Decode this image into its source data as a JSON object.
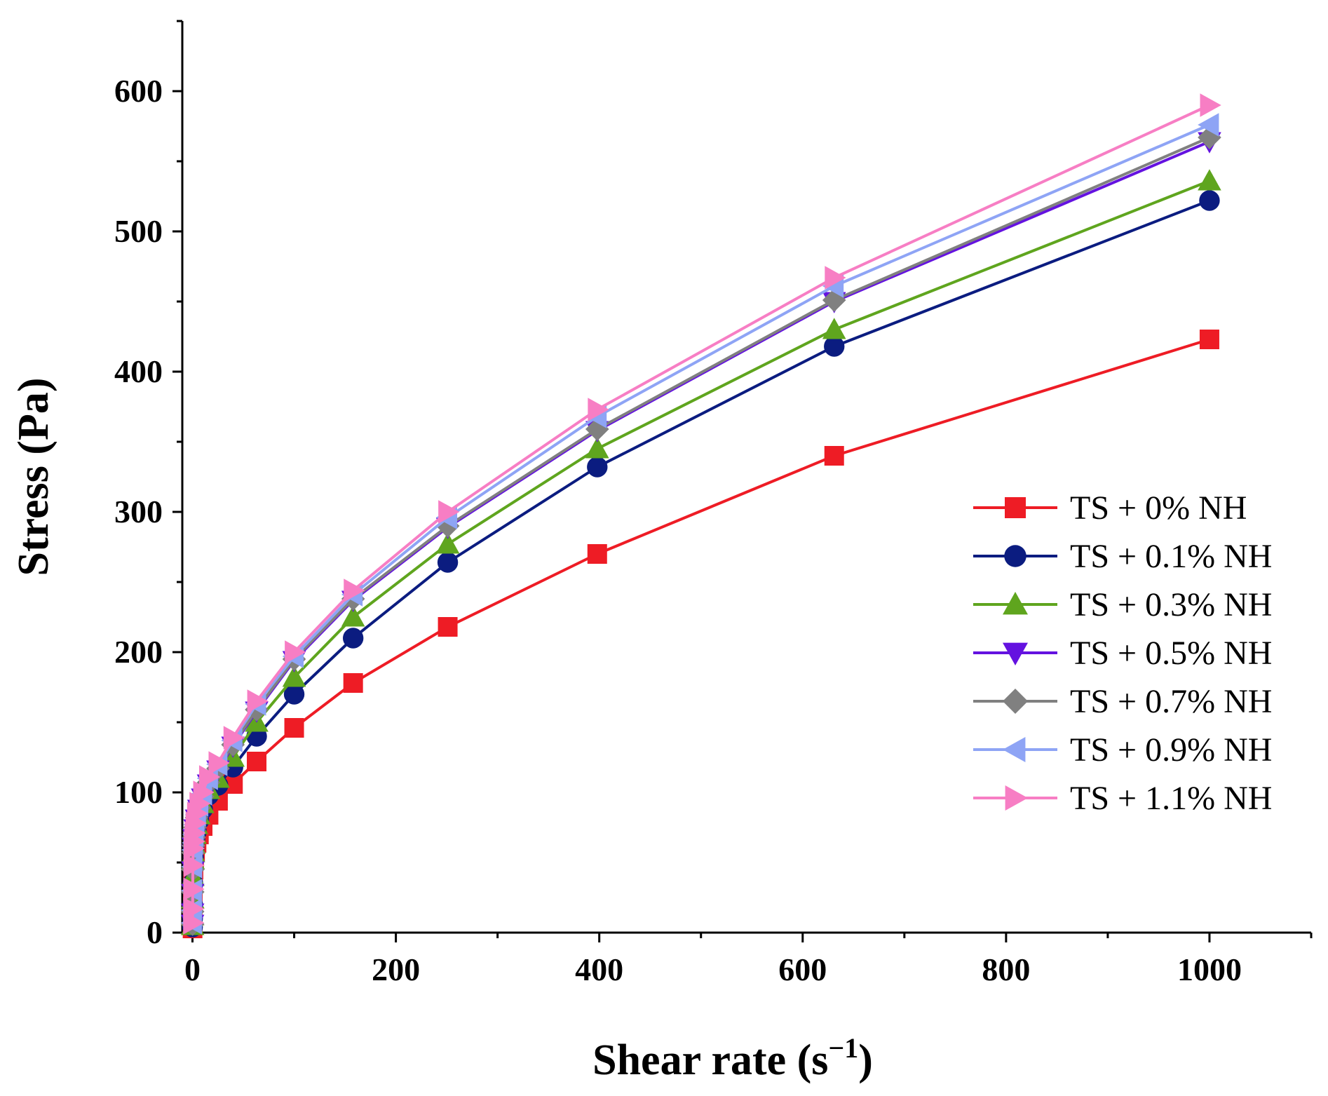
{
  "chart_data": {
    "type": "line",
    "title": "",
    "xlabel": "Shear rate (s",
    "xlabel_sup": "−1",
    "xlabel_tail": ")",
    "ylabel": "Stress (Pa)",
    "xlim": [
      -10,
      1100
    ],
    "ylim": [
      0,
      650
    ],
    "xticks": [
      0,
      200,
      400,
      600,
      800,
      1000
    ],
    "xtick_labels": [
      "0",
      "200",
      "400",
      "600",
      "800",
      "1000"
    ],
    "xminor": [
      100,
      300,
      500,
      700,
      900,
      1100
    ],
    "yticks": [
      0,
      100,
      200,
      300,
      400,
      500,
      600
    ],
    "ytick_labels": [
      "0",
      "100",
      "200",
      "300",
      "400",
      "500",
      "600"
    ],
    "yminor": [
      50,
      150,
      250,
      350,
      450,
      550,
      650
    ],
    "grid": false,
    "legend": "right",
    "x": [
      0.1,
      0.16,
      0.25,
      0.4,
      0.63,
      1,
      1.58,
      2.51,
      3.98,
      6.31,
      10,
      15.8,
      25.1,
      39.8,
      63.1,
      100,
      158,
      251,
      398,
      631,
      1000
    ],
    "series": [
      {
        "name": "TS + 0% NH",
        "color": "#ee1c25",
        "marker": "square",
        "values": [
          3,
          8,
          15,
          28,
          40,
          45,
          52,
          58,
          64,
          70,
          76,
          84,
          94,
          106,
          122,
          146,
          178,
          218,
          270,
          340,
          423
        ]
      },
      {
        "name": "TS + 0.1% NH",
        "color": "#0b1c80",
        "marker": "circle",
        "values": [
          4,
          10,
          20,
          35,
          48,
          54,
          60,
          66,
          72,
          80,
          88,
          98,
          105,
          118,
          140,
          170,
          210,
          264,
          332,
          418,
          522
        ]
      },
      {
        "name": "TS + 0.3% NH",
        "color": "#5fa51e",
        "marker": "triangle-up",
        "values": [
          5,
          12,
          24,
          40,
          52,
          57,
          63,
          70,
          77,
          84,
          92,
          102,
          110,
          125,
          150,
          182,
          225,
          277,
          345,
          430,
          536
        ]
      },
      {
        "name": "TS + 0.5% NH",
        "color": "#6412e0",
        "marker": "triangle-down",
        "values": [
          6,
          14,
          28,
          44,
          56,
          61,
          67,
          74,
          81,
          88,
          96,
          106,
          116,
          133,
          158,
          194,
          237,
          289,
          358,
          450,
          564
        ]
      },
      {
        "name": "TS + 0.7% NH",
        "color": "#808080",
        "marker": "diamond",
        "values": [
          6,
          15,
          29,
          45,
          57,
          62,
          68,
          75,
          82,
          89,
          97,
          107,
          117,
          134,
          159,
          195,
          238,
          290,
          359,
          451,
          567
        ]
      },
      {
        "name": "TS + 0.9% NH",
        "color": "#8ea4f5",
        "marker": "triangle-left",
        "values": [
          7,
          16,
          30,
          47,
          59,
          64,
          70,
          77,
          84,
          91,
          99,
          110,
          120,
          137,
          163,
          197,
          241,
          296,
          368,
          461,
          576
        ]
      },
      {
        "name": "TS + 1.1% NH",
        "color": "#f77ec4",
        "marker": "triangle-right",
        "values": [
          7,
          17,
          31,
          48,
          60,
          65,
          71,
          78,
          85,
          92,
          100,
          111,
          121,
          139,
          165,
          200,
          244,
          300,
          373,
          467,
          590
        ]
      }
    ]
  }
}
